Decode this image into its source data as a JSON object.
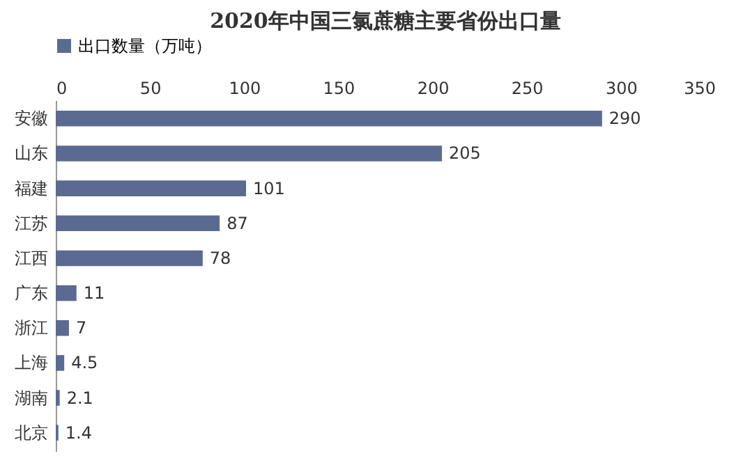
{
  "chart_data": {
    "type": "bar",
    "orientation": "horizontal",
    "title": "2020年中国三氯蔗糖主要省份出口量",
    "categories": [
      "安徽",
      "山东",
      "福建",
      "江苏",
      "江西",
      "广东",
      "浙江",
      "上海",
      "湖南",
      "北京"
    ],
    "series": [
      {
        "name": "出口数量（万吨）",
        "color": "#5b6a91",
        "values": [
          290,
          205,
          101,
          87,
          78,
          11,
          7,
          4.5,
          2.1,
          1.4
        ]
      }
    ],
    "xlim": [
      0,
      350
    ],
    "xticks": [
      0,
      50,
      100,
      150,
      200,
      250,
      300,
      350
    ],
    "data_labels": true,
    "grid": false,
    "legend": "top"
  }
}
